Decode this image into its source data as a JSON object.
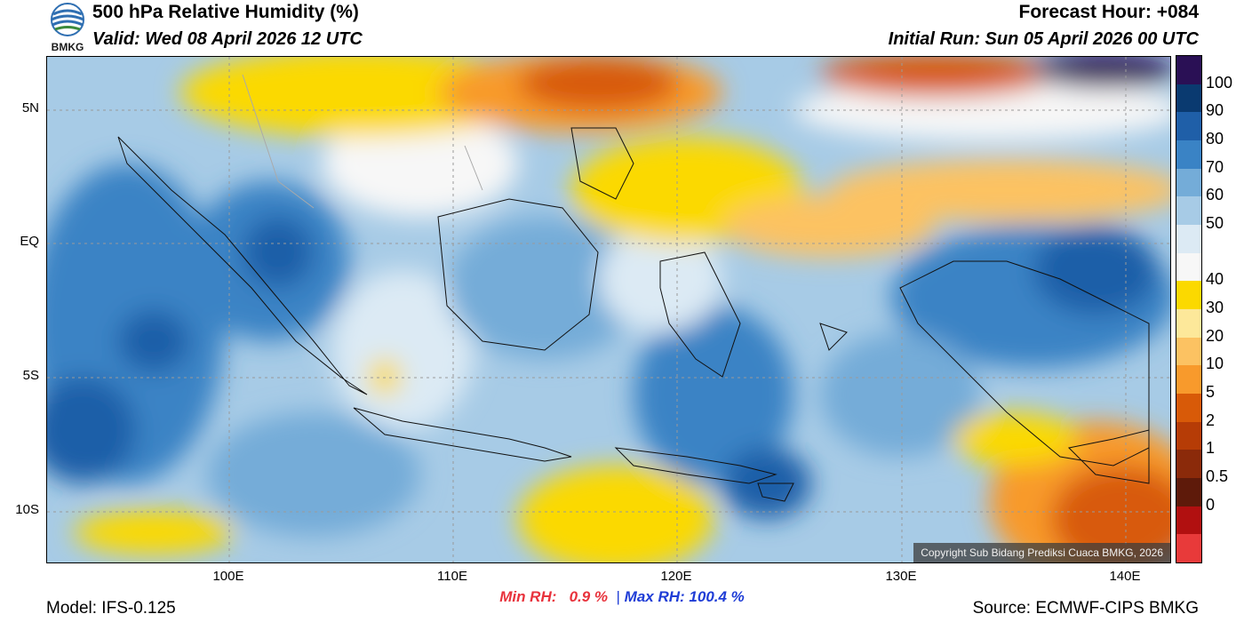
{
  "header": {
    "title": "500 hPa Relative Humidity (%)",
    "valid": "Valid: Wed 08 April 2026 12 UTC",
    "forecast_hour": "Forecast Hour: +084",
    "initial_run": "Initial Run: Sun 05 April 2026 00 UTC"
  },
  "logo": {
    "text": "BMKG"
  },
  "map": {
    "copyright": "Copyright Sub Bidang Prediksi Cuaca BMKG, 2026",
    "lat_labels": [
      "5N",
      "EQ",
      "5S",
      "10S"
    ],
    "lon_labels": [
      "100E",
      "110E",
      "120E",
      "130E",
      "140E"
    ]
  },
  "colorbar": {
    "labels": [
      "100",
      "90",
      "80",
      "70",
      "60",
      "50",
      "40",
      "30",
      "20",
      "10",
      "5",
      "2",
      "1",
      "0.5",
      "0"
    ],
    "colors": [
      "#2a1055",
      "#0a3a70",
      "#1f5fa8",
      "#3a83c5",
      "#74acd8",
      "#a7cbe6",
      "#dceaf4",
      "#f7f7f7",
      "#fbd900",
      "#fde89a",
      "#fcc262",
      "#f89a2c",
      "#d85a08",
      "#b63c06",
      "#8b2a0a",
      "#5e1a0a",
      "#b11010",
      "#e83a3a"
    ]
  },
  "stats": {
    "min_label": "Min RH:",
    "min_value": "0.9 %",
    "separator": "|",
    "max_label": "Max RH:",
    "max_value": "100.4 %"
  },
  "footer": {
    "model": "Model: IFS-0.125",
    "source": "Source: ECMWF-CIPS BMKG"
  }
}
